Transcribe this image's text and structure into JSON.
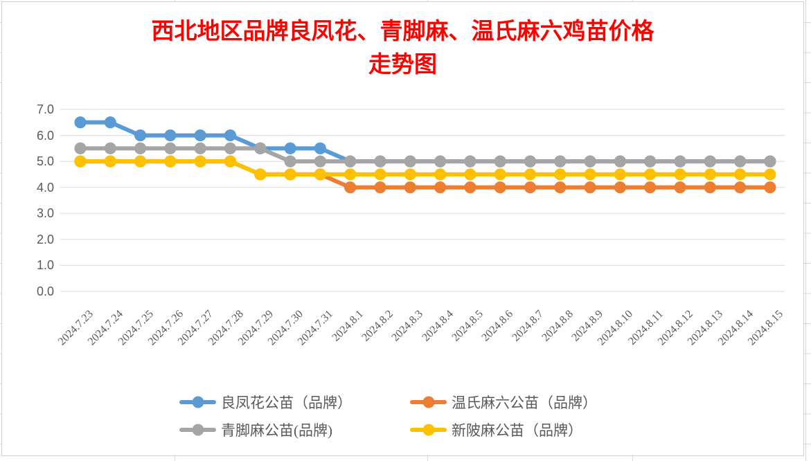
{
  "chart_data": {
    "type": "line",
    "title": "西北地区品牌良凤花、青脚麻、温氏麻六鸡苗价格走势图",
    "title_lines": [
      "西北地区品牌良凤花、青脚麻、温氏麻六鸡苗价格",
      "走势图"
    ],
    "title_color": "#FF0000",
    "categories": [
      "2024.7.23",
      "2024.7.24",
      "2024.7.25",
      "2024.7.26",
      "2024.7.27",
      "2024.7.28",
      "2024.7.29",
      "2024.7.30",
      "2024.7.31",
      "2024.8.1",
      "2024.8.2",
      "2024.8.3",
      "2024.8.4",
      "2024.8.5",
      "2024.8.6",
      "2024.8.7",
      "2024.8.8",
      "2024.8.9",
      "2024.8.10",
      "2024.8.11",
      "2024.8.12",
      "2024.8.13",
      "2024.8.14",
      "2024.8.15"
    ],
    "series": [
      {
        "name": "良凤花公苗（品牌）",
        "slug": "liangfenghua",
        "color": "#5B9BD5",
        "values": [
          6.5,
          6.5,
          6.0,
          6.0,
          6.0,
          6.0,
          5.5,
          5.5,
          5.5,
          5.0,
          5.0,
          5.0,
          5.0,
          5.0,
          5.0,
          5.0,
          5.0,
          5.0,
          5.0,
          5.0,
          5.0,
          5.0,
          5.0,
          5.0
        ]
      },
      {
        "name": "温氏麻六公苗（品牌）",
        "slug": "wenshimaliu",
        "color": "#ED7D31",
        "values": [
          5.0,
          5.0,
          5.0,
          5.0,
          5.0,
          5.0,
          4.5,
          4.5,
          4.5,
          4.0,
          4.0,
          4.0,
          4.0,
          4.0,
          4.0,
          4.0,
          4.0,
          4.0,
          4.0,
          4.0,
          4.0,
          4.0,
          4.0,
          4.0
        ]
      },
      {
        "name": "青脚麻公苗(品牌)",
        "slug": "qingjiaoma",
        "color": "#A5A5A5",
        "values": [
          5.5,
          5.5,
          5.5,
          5.5,
          5.5,
          5.5,
          5.5,
          5.0,
          5.0,
          5.0,
          5.0,
          5.0,
          5.0,
          5.0,
          5.0,
          5.0,
          5.0,
          5.0,
          5.0,
          5.0,
          5.0,
          5.0,
          5.0,
          5.0
        ]
      },
      {
        "name": "新陂麻公苗（品牌）",
        "slug": "xinpima",
        "color": "#FFC000",
        "values": [
          5.0,
          5.0,
          5.0,
          5.0,
          5.0,
          5.0,
          4.5,
          4.5,
          4.5,
          4.5,
          4.5,
          4.5,
          4.5,
          4.5,
          4.5,
          4.5,
          4.5,
          4.5,
          4.5,
          4.5,
          4.5,
          4.5,
          4.5,
          4.5
        ]
      }
    ],
    "ylim": [
      0,
      7
    ],
    "ytick_labels": [
      "0.0",
      "1.0",
      "2.0",
      "3.0",
      "4.0",
      "5.0",
      "6.0",
      "7.0"
    ],
    "grid": true,
    "legend_position": "bottom",
    "colors": {
      "axis_label": "#595959",
      "gridline": "#D9D9D9",
      "chart_background": "#FFFFFF",
      "chart_border": "#D0CECE",
      "sheet_cell_border": "#D9D9D9"
    }
  }
}
